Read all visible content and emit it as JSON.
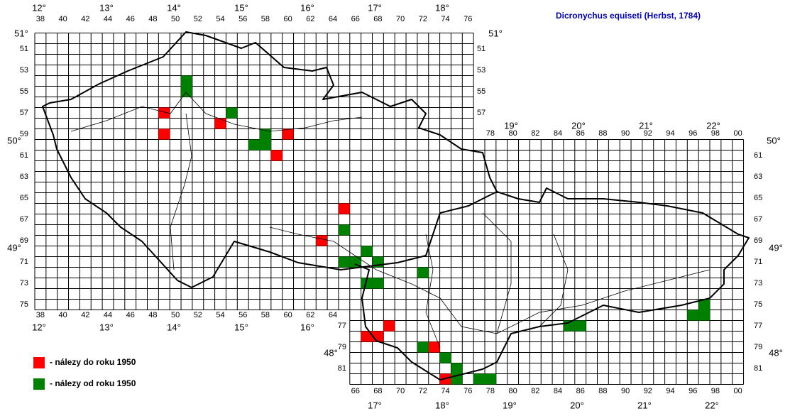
{
  "title": "Dicronychus equiseti (Herbst, 1784)",
  "legend": {
    "red": "- nálezy do roku 1950",
    "green": "- nálezy od roku 1950"
  },
  "col_labels_top_cz": [
    "38",
    "40",
    "42",
    "44",
    "46",
    "48",
    "50",
    "52",
    "54",
    "56",
    "58",
    "60",
    "62",
    "64",
    "66",
    "68",
    "70",
    "72",
    "74",
    "76"
  ],
  "col_labels_top_sk": [
    "78",
    "80",
    "82",
    "84",
    "86",
    "88",
    "90",
    "92",
    "94",
    "96",
    "98",
    "00"
  ],
  "col_labels_bottom_cz": [
    "38",
    "40",
    "42",
    "44",
    "46",
    "48",
    "50",
    "52",
    "54",
    "56",
    "58",
    "60",
    "62",
    "64"
  ],
  "col_labels_bottom_sk": [
    "66",
    "68",
    "70",
    "72",
    "74",
    "76",
    "78",
    "80",
    "82",
    "84",
    "86",
    "88",
    "90",
    "92",
    "94",
    "96",
    "98",
    "00"
  ],
  "row_labels_left_cz": [
    "51",
    "53",
    "55",
    "57",
    "59",
    "61",
    "63",
    "65",
    "67",
    "69",
    "71",
    "73",
    "75"
  ],
  "row_labels_left_sk": [
    "77",
    "79",
    "81"
  ],
  "row_labels_right_cz": [
    "51",
    "53",
    "55",
    "57"
  ],
  "row_labels_right_sk": [
    "61",
    "63",
    "65",
    "67",
    "69",
    "71",
    "73",
    "75",
    "77",
    "79",
    "81"
  ],
  "deg_top_cz": [
    "12°",
    "13°",
    "14°",
    "15°",
    "16°",
    "17°",
    "18°"
  ],
  "deg_top_sk": [
    "19°",
    "20°",
    "21°",
    "22°"
  ],
  "deg_bottom_cz": [
    "12°",
    "13°",
    "14°",
    "15°",
    "16°"
  ],
  "deg_bottom_sk": [
    "17°",
    "18°",
    "19°",
    "20°",
    "21°",
    "22°"
  ],
  "deg_left": [
    "51°",
    "50°",
    "49°",
    "48°"
  ],
  "deg_right": [
    "51°",
    "50°",
    "49°",
    "48°"
  ],
  "red_records": [
    {
      "col": 49,
      "row": 57
    },
    {
      "col": 49,
      "row": 59
    },
    {
      "col": 54,
      "row": 58
    },
    {
      "col": 60,
      "row": 59
    },
    {
      "col": 59,
      "row": 61
    },
    {
      "col": 65,
      "row": 66
    },
    {
      "col": 63,
      "row": 69
    },
    {
      "col": 69,
      "row": 77
    },
    {
      "col": 67,
      "row": 78
    },
    {
      "col": 68,
      "row": 78
    },
    {
      "col": 73,
      "row": 79
    },
    {
      "col": 74,
      "row": 82
    }
  ],
  "green_records": [
    {
      "col": 51,
      "row": 54
    },
    {
      "col": 51,
      "row": 55
    },
    {
      "col": 55,
      "row": 57
    },
    {
      "col": 58,
      "row": 59
    },
    {
      "col": 57,
      "row": 60
    },
    {
      "col": 58,
      "row": 60
    },
    {
      "col": 65,
      "row": 68
    },
    {
      "col": 67,
      "row": 70
    },
    {
      "col": 65,
      "row": 71
    },
    {
      "col": 66,
      "row": 71
    },
    {
      "col": 68,
      "row": 71
    },
    {
      "col": 72,
      "row": 72
    },
    {
      "col": 67,
      "row": 73
    },
    {
      "col": 68,
      "row": 73
    },
    {
      "col": 72,
      "row": 79
    },
    {
      "col": 74,
      "row": 80
    },
    {
      "col": 75,
      "row": 81
    },
    {
      "col": 75,
      "row": 82
    },
    {
      "col": 77,
      "row": 82
    },
    {
      "col": 78,
      "row": 82
    },
    {
      "col": 85,
      "row": 77
    },
    {
      "col": 86,
      "row": 77
    },
    {
      "col": 97,
      "row": 75
    },
    {
      "col": 96,
      "row": 76
    },
    {
      "col": 97,
      "row": 76
    }
  ]
}
